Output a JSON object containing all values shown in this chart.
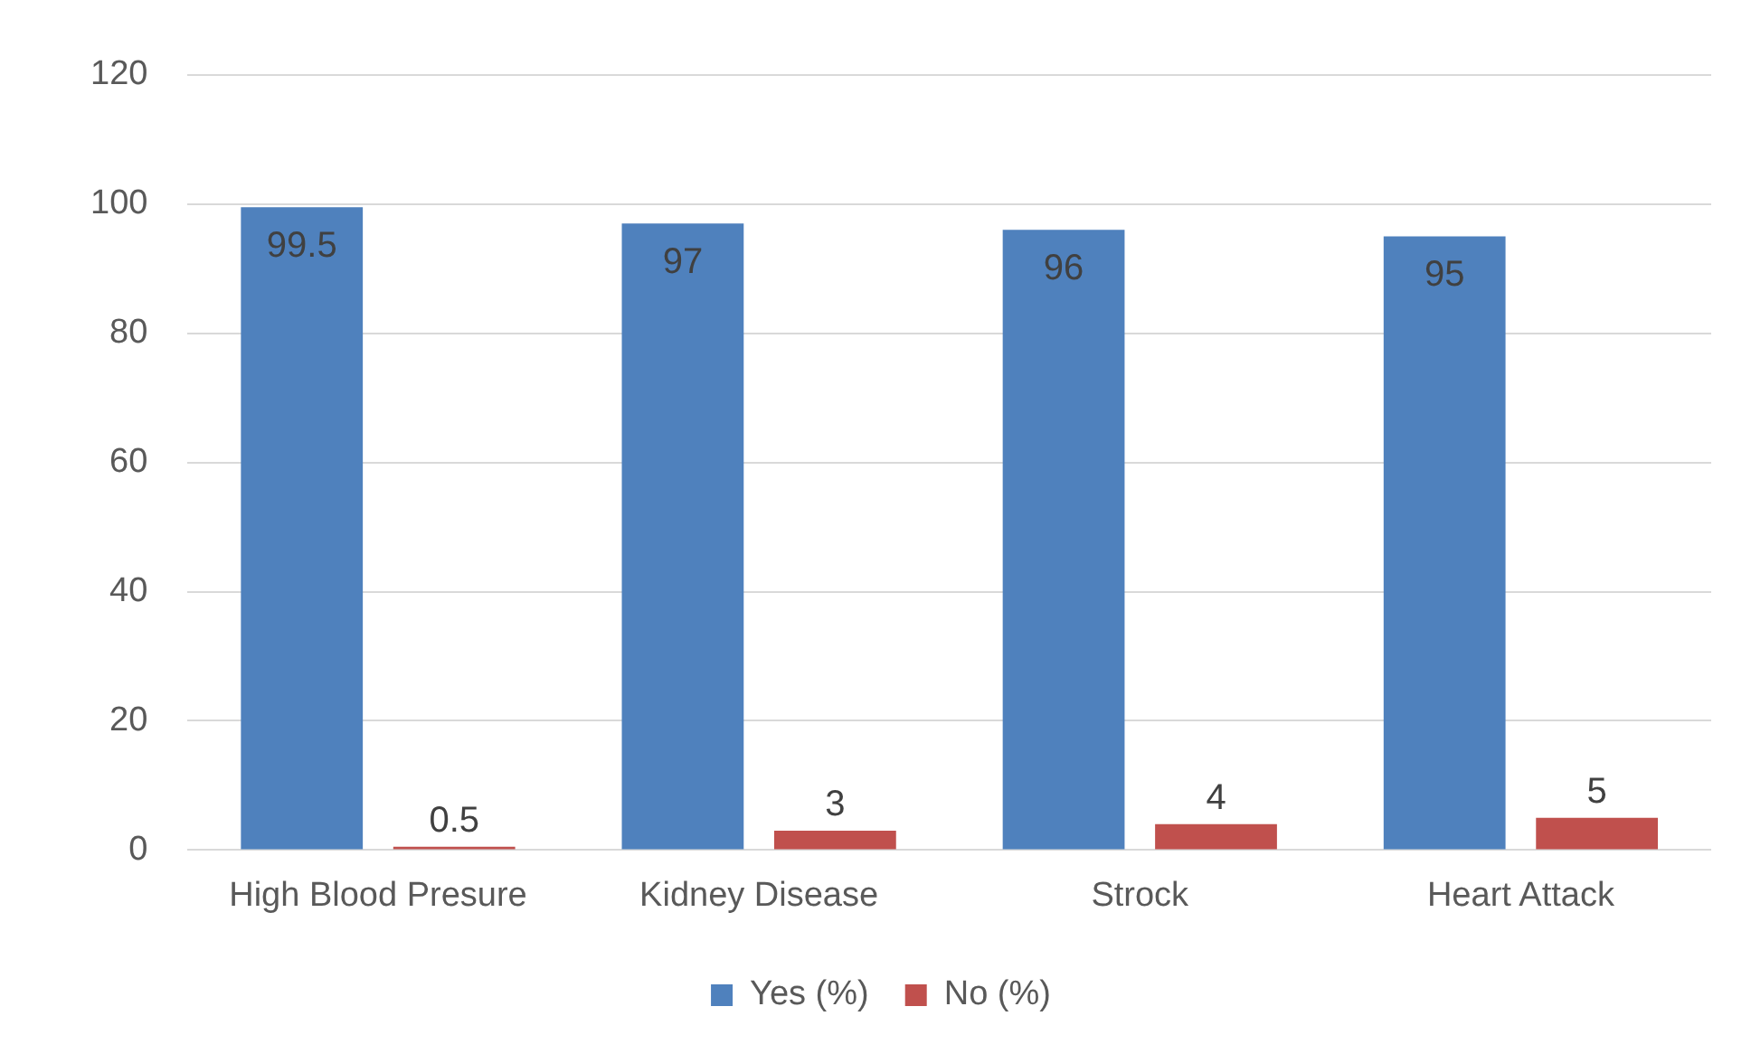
{
  "chart_data": {
    "type": "bar",
    "categories": [
      "High Blood Presure",
      "Kidney Disease",
      "Strock",
      "Heart Attack"
    ],
    "series": [
      {
        "name": "Yes (%)",
        "color": "#4f81bd",
        "values": [
          99.5,
          97,
          96,
          95
        ]
      },
      {
        "name": "No (%)",
        "color": "#c0504d",
        "values": [
          0.5,
          3,
          4,
          5
        ]
      }
    ],
    "ylim": [
      0,
      120
    ],
    "yticks": [
      0,
      20,
      40,
      60,
      80,
      100,
      120
    ],
    "grid": "y",
    "legend": "bottom",
    "data_labels": true
  }
}
